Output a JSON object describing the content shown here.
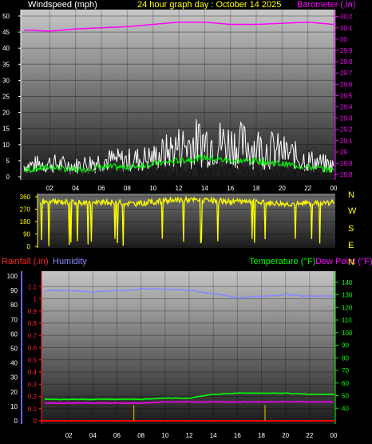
{
  "header": {
    "title": "24 hour graph day : October 14 2025",
    "wind_label": "Windspeed (mph)",
    "baro_label": "Barometer (.in)",
    "rain_label": "Rainfall (.in)",
    "hum_label": "Humidity",
    "temp_label": "Temperature (°F)",
    "dew_label": "Dew Point (°F)"
  },
  "colors": {
    "title": "#ffff00",
    "windspeed": "#ffffff",
    "wind_avg": "#00ff00",
    "barometer": "#ff00ff",
    "direction": "#ffff00",
    "rainfall": "#ff0000",
    "humidity": "#8888ff",
    "temperature": "#00ff00",
    "dewpoint": "#ff00ff"
  },
  "x_ticks": [
    "02",
    "04",
    "06",
    "08",
    "10",
    "12",
    "14",
    "16",
    "18",
    "20",
    "22",
    "00"
  ],
  "chart_data": [
    {
      "type": "line",
      "name": "windspeed_barometer",
      "left_axis": {
        "label": "Windspeed (mph)",
        "min": 0,
        "max": 50,
        "ticks": [
          "0",
          "5",
          "10",
          "15",
          "20",
          "25",
          "30",
          "35",
          "40",
          "45",
          "50"
        ]
      },
      "right_axis": {
        "label": "Barometer (.in)",
        "min": 28.78,
        "max": 30.24,
        "ticks": [
          "28.8",
          "28.9",
          "29",
          "29.1",
          "29.2",
          "29.3",
          "29.4",
          "29.5",
          "29.6",
          "29.7",
          "29.8",
          "29.9",
          "30",
          "30.1",
          "30.2"
        ]
      },
      "x_hours": [
        0,
        2,
        4,
        6,
        8,
        10,
        12,
        14,
        16,
        18,
        20,
        22,
        24
      ],
      "series": [
        {
          "name": "Windspeed",
          "axis": "left",
          "values": [
            4,
            5,
            4,
            6,
            6,
            7,
            11,
            13,
            12,
            11,
            9,
            6,
            4
          ]
        },
        {
          "name": "Wind average",
          "axis": "left",
          "values": [
            2,
            3,
            2,
            3,
            3,
            4,
            5,
            6,
            5,
            5,
            4,
            3,
            2
          ]
        },
        {
          "name": "Barometer",
          "axis": "right",
          "values": [
            30.08,
            30.07,
            30.09,
            30.1,
            30.11,
            30.13,
            30.15,
            30.15,
            30.13,
            30.13,
            30.14,
            30.15,
            30.13
          ]
        }
      ]
    },
    {
      "type": "line",
      "name": "wind_direction",
      "left_axis": {
        "min": 0,
        "max": 360,
        "ticks": [
          "0",
          "90",
          "180",
          "270",
          "360"
        ]
      },
      "right_labels": [
        "N",
        "W",
        "S",
        "E",
        "N"
      ],
      "x_hours": [
        0,
        2,
        4,
        6,
        8,
        10,
        12,
        14,
        16,
        18,
        20,
        22,
        24
      ],
      "series": [
        {
          "name": "Direction",
          "values": [
            320,
            325,
            315,
            320,
            310,
            330,
            340,
            330,
            325,
            320,
            310,
            315,
            320
          ]
        }
      ]
    },
    {
      "type": "line",
      "name": "rain_humidity_temperature",
      "left_axis": {
        "label": "Humidity",
        "min": 0,
        "max": 100,
        "ticks": [
          "0",
          "10",
          "20",
          "30",
          "40",
          "50",
          "60",
          "70",
          "80",
          "90",
          "100"
        ]
      },
      "rain_axis": {
        "label": "Rainfall (.in)",
        "min": 0,
        "max": 1.2,
        "ticks": [
          "0",
          "0.1",
          "0.2",
          "0.3",
          "0.4",
          "0.5",
          "0.6",
          "0.7",
          "0.8",
          "0.9",
          "1",
          "1.1"
        ]
      },
      "right_axis": {
        "label": "Temperature (°F)",
        "min": 30,
        "max": 150,
        "ticks": [
          "40",
          "50",
          "60",
          "70",
          "80",
          "90",
          "100",
          "110",
          "120",
          "130",
          "140"
        ]
      },
      "x_hours": [
        0,
        2,
        4,
        6,
        8,
        10,
        12,
        14,
        16,
        18,
        20,
        22,
        24
      ],
      "series": [
        {
          "name": "Humidity",
          "axis": "left",
          "values": [
            90,
            90,
            89,
            90,
            91,
            91,
            90,
            88,
            85,
            86,
            87,
            86,
            86
          ]
        },
        {
          "name": "Temperature",
          "axis": "right",
          "values": [
            47,
            47,
            47,
            47,
            47,
            48,
            48,
            51,
            52,
            52,
            52,
            51,
            51
          ]
        },
        {
          "name": "Dew Point",
          "axis": "right",
          "values": [
            44,
            44,
            44,
            44,
            44,
            45,
            45,
            45,
            45,
            45,
            45,
            45,
            45
          ]
        },
        {
          "name": "Rainfall",
          "axis": "rain",
          "values": [
            0,
            0,
            0,
            0,
            0,
            0,
            0,
            0,
            0,
            0,
            0,
            0,
            0
          ]
        }
      ]
    }
  ]
}
